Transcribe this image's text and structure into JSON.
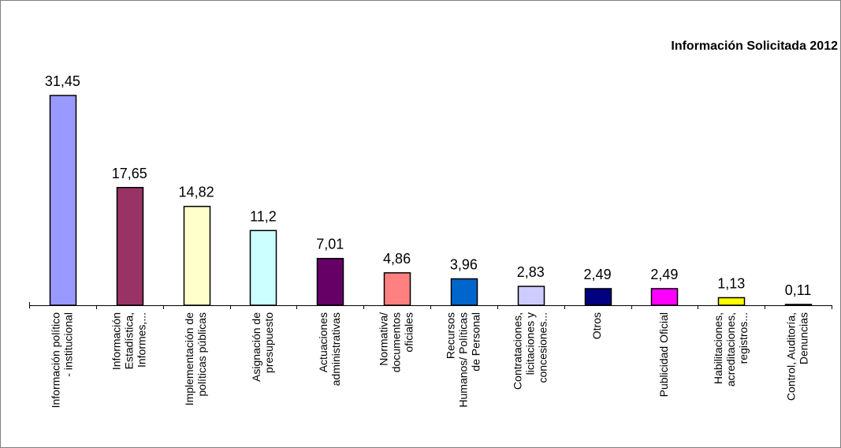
{
  "chart_data": {
    "type": "bar",
    "title": "Información Solicitada 2012",
    "xlabel": "",
    "ylabel": "",
    "ylim": [
      0,
      35
    ],
    "grid": false,
    "categories": [
      [
        "Información político",
        "- institucional"
      ],
      [
        "Información",
        "Estadística,",
        "Informes,..."
      ],
      [
        "Implementación de",
        "políticas públicas"
      ],
      [
        "Asignación de",
        "presupuesto"
      ],
      [
        "Actuaciones",
        "administrativas"
      ],
      [
        "Normativa/",
        "documentos",
        "oficiales"
      ],
      [
        "Recursos",
        "Humanos/ Políticas",
        "de Personal"
      ],
      [
        "Contrataciones,",
        "licitaciones y",
        "concesiones..."
      ],
      [
        "Otros"
      ],
      [
        "Publicidad Oficial"
      ],
      [
        "Habilitaciones,",
        "acreditaciones,",
        "registros..."
      ],
      [
        "Control, Auditoría,",
        "Denuncias"
      ]
    ],
    "values": [
      31.45,
      17.65,
      14.82,
      11.2,
      7.01,
      4.86,
      3.96,
      2.83,
      2.49,
      2.49,
      1.13,
      0.11
    ],
    "value_labels": [
      "31,45",
      "17,65",
      "14,82",
      "11,2",
      "7,01",
      "4,86",
      "3,96",
      "2,83",
      "2,49",
      "2,49",
      "1,13",
      "0,11"
    ],
    "colors": [
      "#9999ff",
      "#993366",
      "#ffffcc",
      "#ccffff",
      "#660066",
      "#ff8080",
      "#0066cc",
      "#ccccff",
      "#000080",
      "#ff00ff",
      "#ffff00",
      "#00ffff"
    ]
  }
}
